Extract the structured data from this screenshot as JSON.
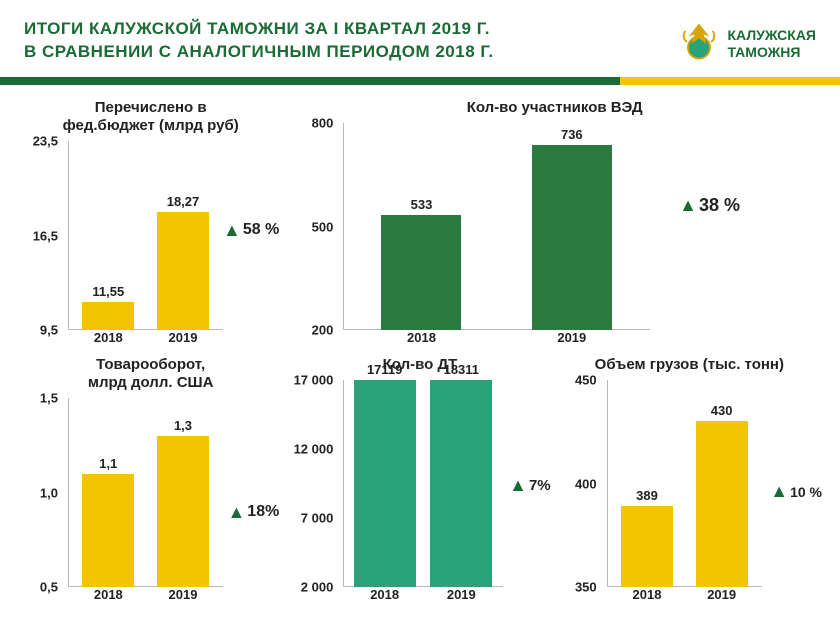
{
  "header": {
    "title_line1": "ИТОГИ  КАЛУЖСКОЙ  ТАМОЖНИ  ЗА I КВАРТАЛ 2019 Г.",
    "title_line2": "В СРАВНЕНИИ  С АНАЛОГИЧНЫМ  ПЕРИОДОМ  2018 Г.",
    "logo_line1": "КАЛУЖСКАЯ",
    "logo_line2": "ТАМОЖНЯ"
  },
  "palette": {
    "green": "#1a6b34",
    "yellow": "#f2c500",
    "dark_green": "#2a7a42",
    "teal": "#2aa37a",
    "background": "#ffffff",
    "axis": "#b8b8b8",
    "text": "#222222"
  },
  "charts": {
    "budget": {
      "type": "bar",
      "title_l1": "Перечислено в",
      "title_l2": "фед.бюджет (млрд руб)",
      "categories": [
        "2018",
        "2019"
      ],
      "values": [
        11.55,
        18.27
      ],
      "value_labels": [
        "11,55",
        "18,27"
      ],
      "bar_colors": [
        "#f2c500",
        "#f2c500"
      ],
      "ylim": [
        9.5,
        23.5
      ],
      "yticks": [
        9.5,
        16.5,
        23.5
      ],
      "ytick_labels": [
        "9,5",
        "16,5",
        "23,5"
      ],
      "delta": "58 %"
    },
    "ved": {
      "type": "bar",
      "title": "Кол-во участников ВЭД",
      "categories": [
        "2018",
        "2019"
      ],
      "values": [
        533,
        736
      ],
      "value_labels": [
        "533",
        "736"
      ],
      "bar_colors": [
        "#2a7a42",
        "#2a7a42"
      ],
      "ylim": [
        200,
        800
      ],
      "yticks": [
        200,
        500,
        800
      ],
      "ytick_labels": [
        "200",
        "500",
        "800"
      ],
      "delta": "38 %"
    },
    "turnover": {
      "type": "bar",
      "title_l1": "Товарооборот,",
      "title_l2": "млрд долл. США",
      "categories": [
        "2018",
        "2019"
      ],
      "values": [
        1.1,
        1.3
      ],
      "value_labels": [
        "1,1",
        "1,3"
      ],
      "bar_colors": [
        "#f2c500",
        "#f2c500"
      ],
      "ylim": [
        0.5,
        1.5
      ],
      "yticks": [
        0.5,
        1.0,
        1.5
      ],
      "ytick_labels": [
        "0,5",
        "1,0",
        "1,5"
      ],
      "delta": "18%"
    },
    "dt": {
      "type": "bar",
      "title": "Кол-во ДТ",
      "categories": [
        "2018",
        "2019"
      ],
      "values": [
        17119,
        18311
      ],
      "value_labels": [
        "17119",
        "18311"
      ],
      "bar_colors": [
        "#2aa37a",
        "#2aa37a"
      ],
      "ylim": [
        2000,
        17000
      ],
      "yticks": [
        2000,
        7000,
        12000,
        17000
      ],
      "ytick_labels": [
        "2 000",
        "7 000",
        "12 000",
        "17 000"
      ],
      "delta": "7%"
    },
    "cargo": {
      "type": "bar",
      "title": "Объем грузов (тыс. тонн)",
      "categories": [
        "2018",
        "2019"
      ],
      "values": [
        389,
        430
      ],
      "value_labels": [
        "389",
        "430"
      ],
      "bar_colors": [
        "#f2c500",
        "#f2c500"
      ],
      "ylim": [
        350,
        450
      ],
      "yticks": [
        350,
        400,
        450
      ],
      "ytick_labels": [
        "350",
        "400",
        "450"
      ],
      "delta": "10 %"
    }
  }
}
